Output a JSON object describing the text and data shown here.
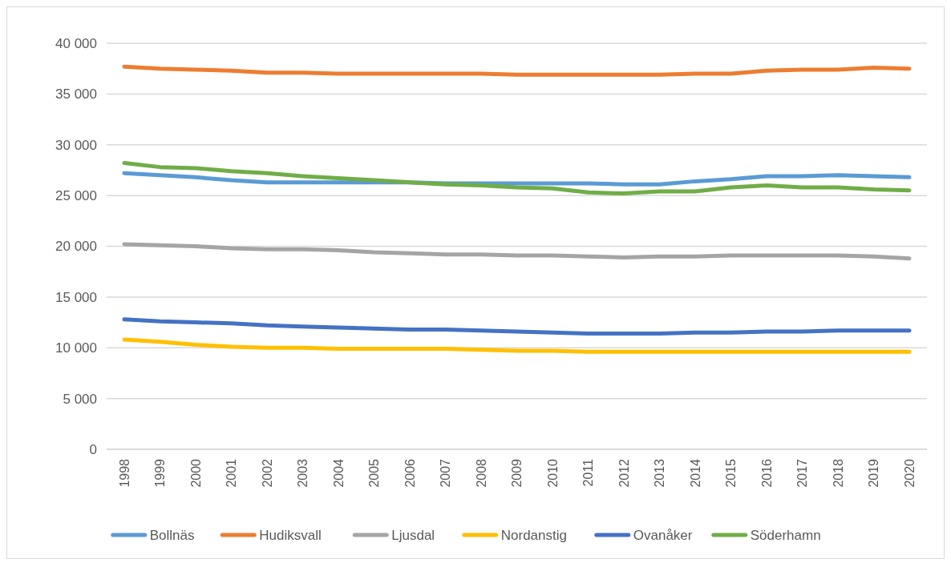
{
  "chart_data": {
    "type": "line",
    "categories": [
      "1998",
      "1999",
      "2000",
      "2001",
      "2002",
      "2003",
      "2004",
      "2005",
      "2006",
      "2007",
      "2008",
      "2009",
      "2010",
      "2011",
      "2012",
      "2013",
      "2014",
      "2015",
      "2016",
      "2017",
      "2018",
      "2019",
      "2020"
    ],
    "ylim": [
      0,
      40000
    ],
    "yticks": [
      {
        "value": 0,
        "label": "0"
      },
      {
        "value": 5000,
        "label": "5 000"
      },
      {
        "value": 10000,
        "label": "10 000"
      },
      {
        "value": 15000,
        "label": "15 000"
      },
      {
        "value": 20000,
        "label": "20 000"
      },
      {
        "value": 25000,
        "label": "25 000"
      },
      {
        "value": 30000,
        "label": "30 000"
      },
      {
        "value": 35000,
        "label": "35 000"
      },
      {
        "value": 40000,
        "label": "40 000"
      }
    ],
    "grid": "y",
    "legend": "bottom",
    "marker": "none",
    "line_style": "solid",
    "series": [
      {
        "name": "Bollnäs",
        "color": "#5b9bd5",
        "values": [
          27200,
          27000,
          26800,
          26500,
          26300,
          26300,
          26300,
          26300,
          26300,
          26200,
          26200,
          26200,
          26200,
          26200,
          26100,
          26100,
          26400,
          26600,
          26900,
          26900,
          27000,
          26900,
          26800
        ]
      },
      {
        "name": "Hudiksvall",
        "color": "#ed7d31",
        "values": [
          37700,
          37500,
          37400,
          37300,
          37100,
          37100,
          37000,
          37000,
          37000,
          37000,
          37000,
          36900,
          36900,
          36900,
          36900,
          36900,
          37000,
          37000,
          37300,
          37400,
          37400,
          37600,
          37500
        ]
      },
      {
        "name": "Ljusdal",
        "color": "#a5a5a5",
        "values": [
          20200,
          20100,
          20000,
          19800,
          19700,
          19700,
          19600,
          19400,
          19300,
          19200,
          19200,
          19100,
          19100,
          19000,
          18900,
          19000,
          19000,
          19100,
          19100,
          19100,
          19100,
          19000,
          18800
        ]
      },
      {
        "name": "Nordanstig",
        "color": "#ffc000",
        "values": [
          10800,
          10600,
          10300,
          10100,
          10000,
          10000,
          9900,
          9900,
          9900,
          9900,
          9800,
          9700,
          9700,
          9600,
          9600,
          9600,
          9600,
          9600,
          9600,
          9600,
          9600,
          9600,
          9600
        ]
      },
      {
        "name": "Ovanåker",
        "color": "#4472c4",
        "values": [
          12800,
          12600,
          12500,
          12400,
          12200,
          12100,
          12000,
          11900,
          11800,
          11800,
          11700,
          11600,
          11500,
          11400,
          11400,
          11400,
          11500,
          11500,
          11600,
          11600,
          11700,
          11700,
          11700
        ]
      },
      {
        "name": "Söderhamn",
        "color": "#70ad47",
        "values": [
          28200,
          27800,
          27700,
          27400,
          27200,
          26900,
          26700,
          26500,
          26300,
          26100,
          26000,
          25800,
          25700,
          25300,
          25200,
          25400,
          25400,
          25800,
          26000,
          25800,
          25800,
          25600,
          25500
        ]
      }
    ]
  }
}
